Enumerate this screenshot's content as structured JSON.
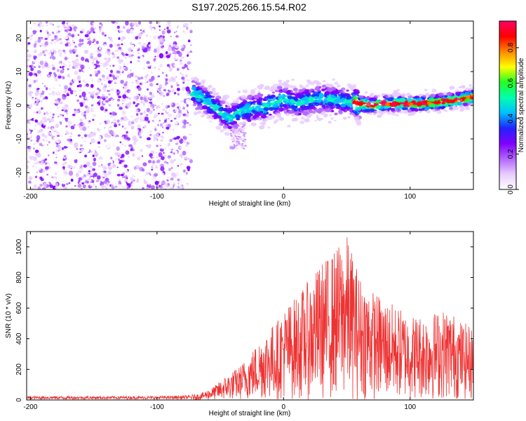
{
  "title": "S197.2025.266.15.54.R02",
  "chart_data": [
    {
      "type": "heatmap",
      "name": "spectrogram",
      "xlabel": "Height of straight line (km)",
      "ylabel": "Frequency (Hz)",
      "xlim": [
        -203,
        150
      ],
      "ylim": [
        -25,
        25
      ],
      "xticks": [
        -200,
        -100,
        0,
        100
      ],
      "xtick_labels": [
        "-200",
        "-100",
        "0",
        "100"
      ],
      "yticks": [
        20,
        10,
        0,
        -10,
        -20
      ],
      "ytick_labels": [
        "20",
        "10",
        "0",
        "-10",
        "-20"
      ],
      "noise_region_km": [
        -203,
        -73
      ],
      "signal_trace": {
        "x": [
          -72,
          -60,
          -50,
          -42,
          -35,
          -25,
          -15,
          -5,
          0,
          10,
          20,
          30,
          40,
          50,
          60,
          70,
          80,
          90,
          100,
          110,
          120,
          130,
          140,
          150
        ],
        "y": [
          4,
          1,
          -2,
          -4,
          -2,
          -1,
          -0.5,
          1,
          2,
          0.5,
          1.5,
          2,
          1.5,
          1,
          0.5,
          0,
          0.5,
          0.5,
          0.5,
          0.5,
          0.8,
          1.2,
          1.8,
          2.5
        ]
      },
      "colorbar": {
        "label": "Normalized spectral amplitude",
        "range": [
          0.0,
          0.95
        ],
        "ticks": [
          0.0,
          0.2,
          0.4,
          0.6,
          0.8
        ],
        "tick_labels": [
          "0.0",
          "0.2",
          "0.4",
          "0.6",
          "0.8"
        ],
        "colors": [
          "#ffffff",
          "#e8ccff",
          "#b266ff",
          "#7f00ff",
          "#2222ff",
          "#00bfff",
          "#00ffb0",
          "#22ff22",
          "#ffff00",
          "#ff8800",
          "#ff0000",
          "#ff0066"
        ]
      }
    },
    {
      "type": "line",
      "name": "snr",
      "xlabel": "Height of straight line (km)",
      "ylabel": "SNR (10 * v/v)",
      "xlim": [
        -203,
        150
      ],
      "ylim": [
        0,
        1100
      ],
      "xticks": [
        -200,
        -100,
        0,
        100
      ],
      "xtick_labels": [
        "-200",
        "-100",
        "0",
        "100"
      ],
      "yticks": [
        0,
        200,
        400,
        600,
        800,
        1000
      ],
      "ytick_labels": [
        "0",
        "200",
        "400",
        "600",
        "800",
        "1000"
      ],
      "color": "#ee3333",
      "envelope": {
        "x": [
          -203,
          -150,
          -100,
          -75,
          -65,
          -55,
          -45,
          -35,
          -25,
          -15,
          -5,
          0,
          10,
          20,
          30,
          40,
          50,
          55,
          60,
          70,
          80,
          90,
          100,
          110,
          120,
          130,
          140,
          150
        ],
        "y": [
          25,
          25,
          25,
          30,
          45,
          90,
          160,
          220,
          320,
          450,
          520,
          600,
          680,
          780,
          900,
          980,
          1080,
          950,
          820,
          720,
          660,
          610,
          560,
          560,
          580,
          600,
          520,
          470
        ]
      }
    }
  ]
}
